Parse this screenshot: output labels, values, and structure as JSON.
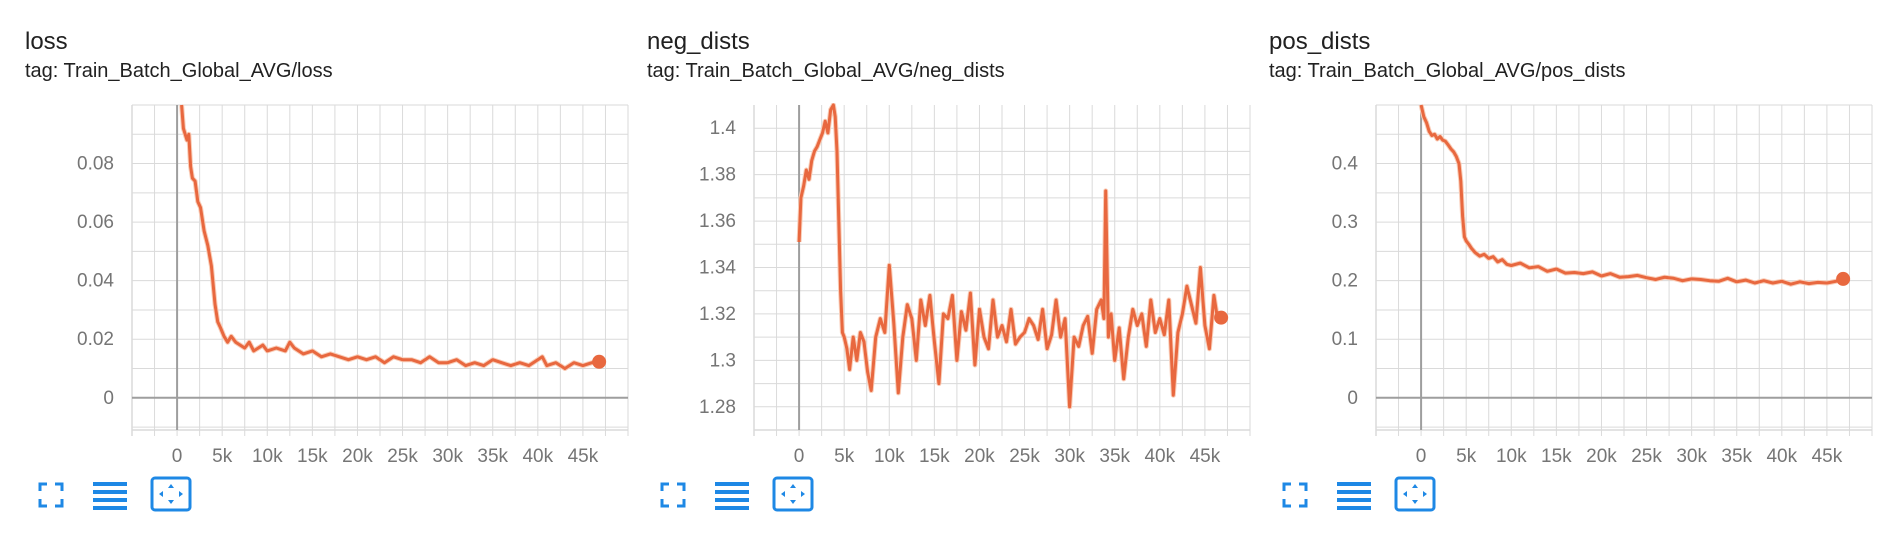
{
  "colors": {
    "line": "#e8683f",
    "line_light": "#f9cdb8",
    "grid": "#dadada",
    "axis": "#9e9e9e",
    "icon": "#1e88e5"
  },
  "charts": [
    {
      "title": "loss",
      "tag": "tag: Train_Batch_Global_AVG/loss",
      "chart_data": {
        "type": "line",
        "title": "loss",
        "subtitle": "tag: Train_Batch_Global_AVG/loss",
        "xlim": [
          -5000,
          50000
        ],
        "ylim": [
          -0.011,
          0.1
        ],
        "xticks": [
          "0",
          "5k",
          "10k",
          "15k",
          "20k",
          "25k",
          "30k",
          "35k",
          "40k",
          "45k"
        ],
        "yticks": [
          "0",
          "0.02",
          "0.04",
          "0.06",
          "0.08"
        ],
        "x_tick_values": [
          0,
          5000,
          10000,
          15000,
          20000,
          25000,
          30000,
          35000,
          40000,
          45000
        ],
        "y_tick_values": [
          0,
          0.02,
          0.04,
          0.06,
          0.08
        ],
        "grid": true,
        "series": [
          {
            "x": [
              500,
              700,
              900,
              1100,
              1300,
              1500,
              1700,
              2000,
              2300,
              2600,
              3000,
              3400,
              3800,
              4200,
              4500,
              4800,
              5200,
              5600,
              6000,
              6500,
              7000,
              7500,
              8000,
              8500,
              9000,
              9500,
              10000,
              11000,
              12000,
              12500,
              13000,
              14000,
              15000,
              16000,
              17000,
              18000,
              19000,
              20000,
              21000,
              22000,
              23000,
              24000,
              25000,
              26000,
              27000,
              28000,
              29000,
              30000,
              31000,
              32000,
              33000,
              34000,
              35000,
              36000,
              37000,
              38000,
              39000,
              40000,
              40500,
              41000,
              42000,
              43000,
              44000,
              45000,
              46000,
              46800
            ],
            "y": [
              0.1,
              0.092,
              0.09,
              0.088,
              0.09,
              0.079,
              0.075,
              0.074,
              0.067,
              0.065,
              0.057,
              0.052,
              0.045,
              0.032,
              0.026,
              0.024,
              0.021,
              0.019,
              0.021,
              0.019,
              0.018,
              0.017,
              0.019,
              0.016,
              0.017,
              0.018,
              0.016,
              0.017,
              0.016,
              0.019,
              0.017,
              0.015,
              0.016,
              0.014,
              0.015,
              0.014,
              0.013,
              0.014,
              0.013,
              0.014,
              0.012,
              0.014,
              0.013,
              0.013,
              0.012,
              0.014,
              0.012,
              0.012,
              0.013,
              0.011,
              0.012,
              0.011,
              0.013,
              0.012,
              0.011,
              0.012,
              0.011,
              0.013,
              0.014,
              0.011,
              0.012,
              0.01,
              0.012,
              0.011,
              0.012,
              0.0123
            ]
          }
        ]
      }
    },
    {
      "title": "neg_dists",
      "tag": "tag: Train_Batch_Global_AVG/neg_dists",
      "chart_data": {
        "type": "line",
        "title": "neg_dists",
        "subtitle": "tag: Train_Batch_Global_AVG/neg_dists",
        "xlim": [
          -5000,
          50000
        ],
        "ylim": [
          1.27,
          1.41
        ],
        "xticks": [
          "0",
          "5k",
          "10k",
          "15k",
          "20k",
          "25k",
          "30k",
          "35k",
          "40k",
          "45k"
        ],
        "yticks": [
          "1.28",
          "1.3",
          "1.32",
          "1.34",
          "1.36",
          "1.38",
          "1.4"
        ],
        "x_tick_values": [
          0,
          5000,
          10000,
          15000,
          20000,
          25000,
          30000,
          35000,
          40000,
          45000
        ],
        "y_tick_values": [
          1.28,
          1.3,
          1.32,
          1.34,
          1.36,
          1.38,
          1.4
        ],
        "grid": true,
        "series": [
          {
            "x": [
              0,
              200,
              500,
              800,
              1100,
              1400,
              1700,
              2000,
              2300,
              2600,
              2900,
              3200,
              3500,
              3800,
              4000,
              4200,
              4400,
              4600,
              4800,
              5000,
              5300,
              5600,
              6000,
              6400,
              6800,
              7200,
              7600,
              8000,
              8500,
              9000,
              9500,
              10000,
              10500,
              11000,
              11500,
              12000,
              12500,
              13000,
              13500,
              14000,
              14500,
              15000,
              15500,
              16000,
              16500,
              17000,
              17500,
              18000,
              18500,
              19000,
              19500,
              20000,
              20500,
              21000,
              21500,
              22000,
              22500,
              23000,
              23500,
              24000,
              24500,
              25000,
              25500,
              26000,
              26500,
              27000,
              27500,
              28000,
              28500,
              29000,
              29500,
              30000,
              30500,
              31000,
              31500,
              32000,
              32500,
              33000,
              33500,
              33800,
              34000,
              34300,
              34600,
              35000,
              35500,
              36000,
              36500,
              37000,
              37500,
              38000,
              38500,
              39000,
              39500,
              40000,
              40500,
              41000,
              41500,
              42000,
              42500,
              43000,
              43500,
              44000,
              44500,
              45000,
              45500,
              46000,
              46400,
              46800
            ],
            "y": [
              1.351,
              1.37,
              1.375,
              1.382,
              1.378,
              1.386,
              1.39,
              1.392,
              1.395,
              1.398,
              1.403,
              1.398,
              1.408,
              1.41,
              1.405,
              1.39,
              1.36,
              1.33,
              1.312,
              1.31,
              1.305,
              1.296,
              1.31,
              1.3,
              1.312,
              1.308,
              1.295,
              1.287,
              1.31,
              1.318,
              1.312,
              1.341,
              1.316,
              1.286,
              1.31,
              1.324,
              1.318,
              1.3,
              1.326,
              1.315,
              1.328,
              1.308,
              1.29,
              1.32,
              1.318,
              1.328,
              1.3,
              1.321,
              1.313,
              1.329,
              1.298,
              1.322,
              1.31,
              1.305,
              1.326,
              1.31,
              1.315,
              1.308,
              1.322,
              1.307,
              1.31,
              1.312,
              1.318,
              1.315,
              1.309,
              1.322,
              1.305,
              1.311,
              1.326,
              1.31,
              1.318,
              1.28,
              1.31,
              1.306,
              1.315,
              1.319,
              1.303,
              1.322,
              1.326,
              1.318,
              1.373,
              1.31,
              1.32,
              1.3,
              1.314,
              1.292,
              1.31,
              1.322,
              1.315,
              1.32,
              1.306,
              1.326,
              1.312,
              1.318,
              1.311,
              1.326,
              1.285,
              1.312,
              1.32,
              1.332,
              1.324,
              1.316,
              1.34,
              1.315,
              1.305,
              1.328,
              1.318,
              1.3184
            ]
          }
        ]
      }
    },
    {
      "title": "pos_dists",
      "tag": "tag: Train_Batch_Global_AVG/pos_dists",
      "chart_data": {
        "type": "line",
        "title": "pos_dists",
        "subtitle": "tag: Train_Batch_Global_AVG/pos_dists",
        "xlim": [
          -5000,
          50000
        ],
        "ylim": [
          -0.055,
          0.5
        ],
        "xticks": [
          "0",
          "5k",
          "10k",
          "15k",
          "20k",
          "25k",
          "30k",
          "35k",
          "40k",
          "45k"
        ],
        "yticks": [
          "0",
          "0.1",
          "0.2",
          "0.3",
          "0.4"
        ],
        "x_tick_values": [
          0,
          5000,
          10000,
          15000,
          20000,
          25000,
          30000,
          35000,
          40000,
          45000
        ],
        "y_tick_values": [
          0,
          0.1,
          0.2,
          0.3,
          0.4
        ],
        "grid": true,
        "series": [
          {
            "x": [
              0,
              300,
              600,
              900,
              1200,
              1500,
              1800,
              2100,
              2400,
              2700,
              3000,
              3300,
              3600,
              3900,
              4200,
              4400,
              4600,
              4800,
              5000,
              5300,
              5600,
              6000,
              6500,
              7000,
              7500,
              8000,
              8500,
              9000,
              9500,
              10000,
              11000,
              12000,
              13000,
              14000,
              15000,
              16000,
              17000,
              18000,
              19000,
              20000,
              21000,
              22000,
              23000,
              24000,
              25000,
              26000,
              27000,
              28000,
              29000,
              30000,
              31000,
              32000,
              33000,
              34000,
              35000,
              36000,
              37000,
              38000,
              39000,
              40000,
              41000,
              42000,
              43000,
              44000,
              45000,
              46000,
              46800
            ],
            "y": [
              0.5,
              0.48,
              0.47,
              0.455,
              0.448,
              0.45,
              0.442,
              0.446,
              0.44,
              0.438,
              0.432,
              0.425,
              0.42,
              0.412,
              0.4,
              0.37,
              0.31,
              0.275,
              0.268,
              0.262,
              0.255,
              0.248,
              0.242,
              0.245,
              0.238,
              0.241,
              0.232,
              0.236,
              0.228,
              0.226,
              0.23,
              0.222,
              0.224,
              0.216,
              0.22,
              0.213,
              0.214,
              0.212,
              0.215,
              0.208,
              0.212,
              0.206,
              0.207,
              0.209,
              0.205,
              0.202,
              0.206,
              0.204,
              0.2,
              0.203,
              0.202,
              0.2,
              0.199,
              0.204,
              0.198,
              0.201,
              0.196,
              0.2,
              0.196,
              0.199,
              0.194,
              0.198,
              0.195,
              0.197,
              0.196,
              0.199,
              0.203
            ]
          }
        ]
      }
    }
  ]
}
